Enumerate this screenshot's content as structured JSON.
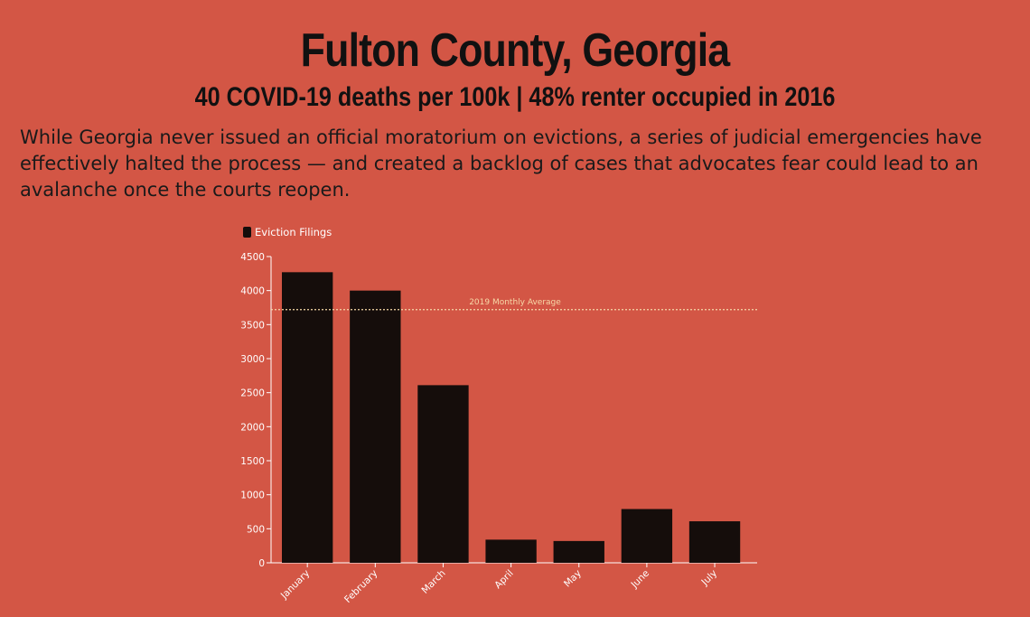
{
  "header": {
    "title": "Fulton County, Georgia",
    "subtitle": "40 COVID-19 deaths per 100k | 48% renter occupied in 2016",
    "description": "While Georgia never issued an official moratorium on evictions, a series of judicial emergencies have effectively halted the process — and created a backlog of cases that advocates fear could lead to an avalanche once the courts reopen."
  },
  "colors": {
    "background": "#d35645",
    "bar": "#150d0b",
    "axis": "#ffffff",
    "tick_text": "#ffffff",
    "reference_line": "#f7d9a8"
  },
  "chart_data": {
    "type": "bar",
    "categories": [
      "January",
      "February",
      "March",
      "April",
      "May",
      "June",
      "July"
    ],
    "series": [
      {
        "name": "Eviction Filings",
        "values": [
          4270,
          4000,
          2610,
          340,
          320,
          790,
          610
        ]
      }
    ],
    "ylim": [
      0,
      4500
    ],
    "yticks": [
      0,
      500,
      1000,
      1500,
      2000,
      2500,
      3000,
      3500,
      4000,
      4500
    ],
    "reference_line": {
      "label": "2019 Monthly Average",
      "value": 3720
    },
    "legend_position": "top-left",
    "grid": false
  }
}
